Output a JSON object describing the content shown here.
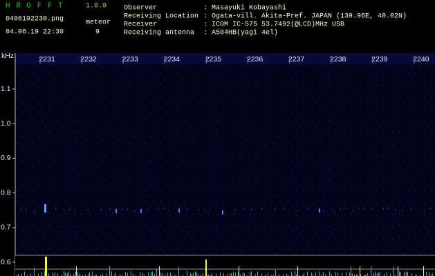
{
  "header": {
    "app_name": "H R O F F T",
    "version": "1.0.0",
    "file": "0406192230.png",
    "meteor_label": "meteor",
    "meteor_count": "9",
    "datetime": "04.06.19 22:30",
    "fields": [
      {
        "label": "Observer",
        "value": ": Masayuki Kobayashi"
      },
      {
        "label": "Receiving Location",
        "value": ": Ogata-vill. Akita-Pref. JAPAN (139.96E, 40.02N)"
      },
      {
        "label": "Receiver",
        "value": ": ICOM IC-575 53.7492(@LCD)MHz USB"
      },
      {
        "label": "Receiving antenna",
        "value": ": A504HB(yagi 4el)"
      }
    ]
  },
  "spectrogram": {
    "unit": "kHz",
    "time_labels": [
      "2231",
      "2232",
      "2233",
      "2234",
      "2235",
      "2236",
      "2237",
      "2238",
      "2239",
      "2240"
    ],
    "freq_labels": [
      "1.1",
      "1.0",
      "0.9",
      "0.8",
      "0.7",
      "0.6"
    ]
  }
}
